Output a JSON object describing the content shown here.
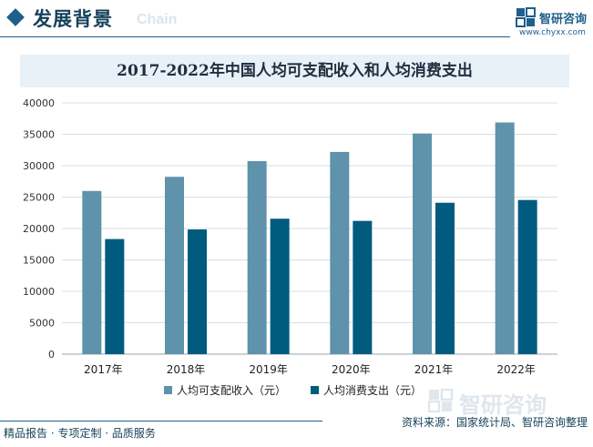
{
  "header": {
    "title": "发展背景",
    "ghost_text": "Chain"
  },
  "brand": {
    "name": "智研咨询",
    "url": "www.chyxx.com"
  },
  "watermark": {
    "text": "智研咨询"
  },
  "footer": {
    "left_text": "精品报告 · 专项定制 · 品质服务",
    "source": "资料来源：国家统计局、智研咨询整理"
  },
  "colors": {
    "series1": "#5e93ab",
    "series2": "#005b7f",
    "accent": "#1f5f8b"
  },
  "chart_data": {
    "type": "bar",
    "title": "2017-2022年中国人均可支配收入和人均消费支出",
    "categories": [
      "2017年",
      "2018年",
      "2019年",
      "2020年",
      "2021年",
      "2022年"
    ],
    "series": [
      {
        "name": "人均可支配收入（元）",
        "values": [
          25974,
          28228,
          30733,
          32189,
          35128,
          36883
        ]
      },
      {
        "name": "人均消费支出（元）",
        "values": [
          18322,
          19853,
          21559,
          21210,
          24100,
          24538
        ]
      }
    ],
    "ylim": [
      0,
      40000
    ],
    "yticks": [
      "0",
      "5000",
      "10000",
      "15000",
      "20000",
      "25000",
      "30000",
      "35000",
      "40000"
    ],
    "xlabel": "",
    "ylabel": "",
    "grid": true,
    "legend": "bottom"
  }
}
